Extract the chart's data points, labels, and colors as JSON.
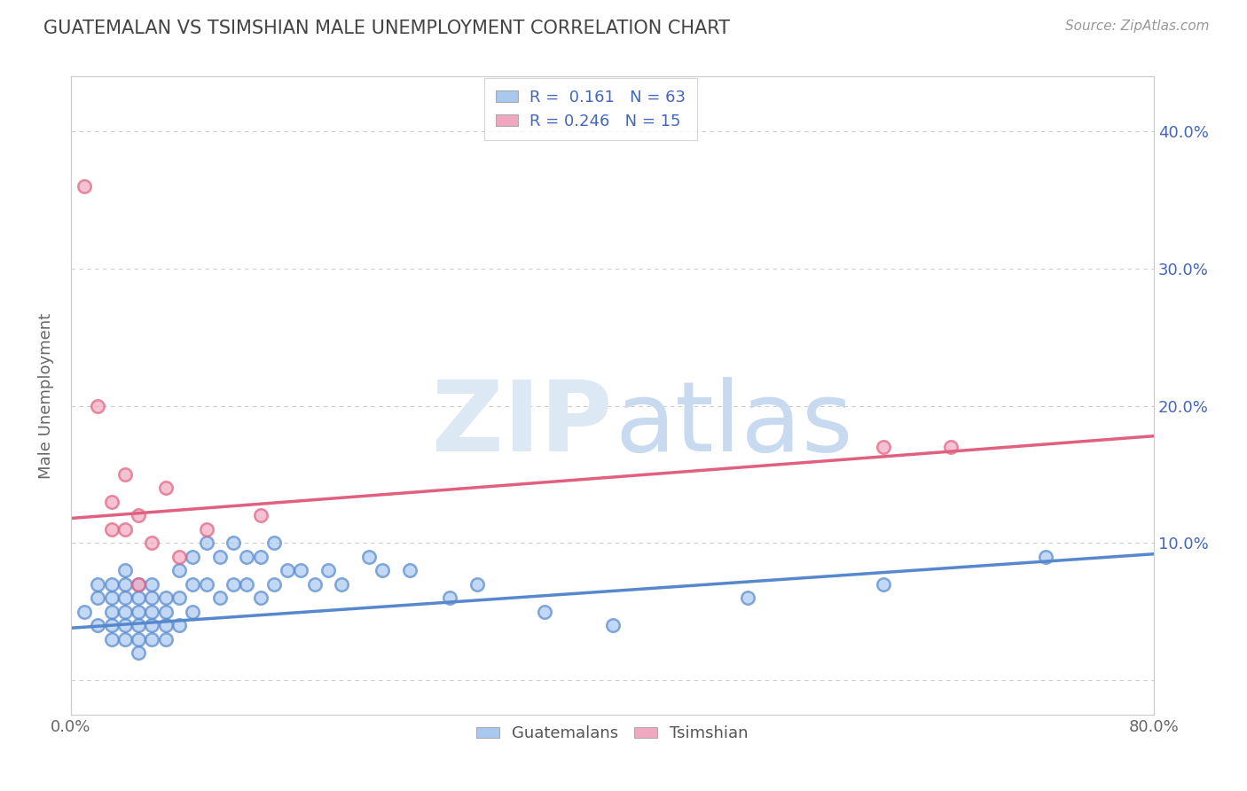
{
  "title": "GUATEMALAN VS TSIMSHIAN MALE UNEMPLOYMENT CORRELATION CHART",
  "source_text": "Source: ZipAtlas.com",
  "ylabel": "Male Unemployment",
  "xlim": [
    0.0,
    0.8
  ],
  "ylim": [
    -0.025,
    0.44
  ],
  "legend_r1": "R =  0.161",
  "legend_n1": "N = 63",
  "legend_r2": "R = 0.246",
  "legend_n2": "N = 15",
  "blue_color": "#a8c8f0",
  "pink_color": "#f0a8c0",
  "line_blue": "#5588cc",
  "line_pink": "#e06080",
  "title_color": "#444444",
  "label_color": "#4466bb",
  "watermark_zip_color": "#dde8f5",
  "watermark_atlas_color": "#c8daf0",
  "blue_scatter_x": [
    0.01,
    0.02,
    0.02,
    0.02,
    0.03,
    0.03,
    0.03,
    0.03,
    0.03,
    0.04,
    0.04,
    0.04,
    0.04,
    0.04,
    0.04,
    0.05,
    0.05,
    0.05,
    0.05,
    0.05,
    0.05,
    0.06,
    0.06,
    0.06,
    0.06,
    0.06,
    0.07,
    0.07,
    0.07,
    0.07,
    0.08,
    0.08,
    0.08,
    0.09,
    0.09,
    0.09,
    0.1,
    0.1,
    0.11,
    0.11,
    0.12,
    0.12,
    0.13,
    0.13,
    0.14,
    0.14,
    0.15,
    0.15,
    0.16,
    0.17,
    0.18,
    0.19,
    0.2,
    0.22,
    0.23,
    0.25,
    0.28,
    0.3,
    0.35,
    0.4,
    0.5,
    0.6,
    0.72
  ],
  "blue_scatter_y": [
    0.05,
    0.04,
    0.06,
    0.07,
    0.03,
    0.04,
    0.05,
    0.06,
    0.07,
    0.03,
    0.04,
    0.05,
    0.06,
    0.07,
    0.08,
    0.02,
    0.03,
    0.04,
    0.05,
    0.06,
    0.07,
    0.03,
    0.04,
    0.05,
    0.06,
    0.07,
    0.03,
    0.04,
    0.05,
    0.06,
    0.04,
    0.06,
    0.08,
    0.05,
    0.07,
    0.09,
    0.07,
    0.1,
    0.06,
    0.09,
    0.07,
    0.1,
    0.07,
    0.09,
    0.06,
    0.09,
    0.07,
    0.1,
    0.08,
    0.08,
    0.07,
    0.08,
    0.07,
    0.09,
    0.08,
    0.08,
    0.06,
    0.07,
    0.05,
    0.04,
    0.06,
    0.07,
    0.09
  ],
  "pink_scatter_x": [
    0.01,
    0.02,
    0.03,
    0.03,
    0.04,
    0.04,
    0.05,
    0.05,
    0.06,
    0.07,
    0.08,
    0.1,
    0.14,
    0.6,
    0.65
  ],
  "pink_scatter_y": [
    0.36,
    0.2,
    0.11,
    0.13,
    0.11,
    0.15,
    0.12,
    0.07,
    0.1,
    0.14,
    0.09,
    0.11,
    0.12,
    0.17,
    0.17
  ],
  "blue_line_x": [
    0.0,
    0.8
  ],
  "blue_line_y": [
    0.038,
    0.092
  ],
  "pink_line_x": [
    0.0,
    0.8
  ],
  "pink_line_y": [
    0.118,
    0.178
  ],
  "bg_color": "#ffffff",
  "grid_color": "#cccccc",
  "scatter_size": 110,
  "scatter_lw": 1.8
}
